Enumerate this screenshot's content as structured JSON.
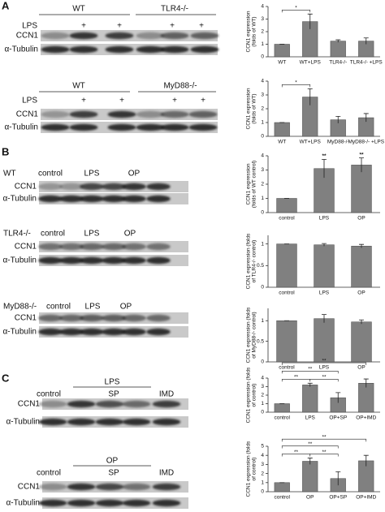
{
  "panels": [
    "A",
    "B",
    "C"
  ],
  "blots": [
    {
      "headers": [
        "WT",
        "TLR4-/-"
      ],
      "treatment": "LPS",
      "lane_marks": [
        "+",
        "+",
        "+",
        "+"
      ],
      "rows": [
        "CCN1",
        "α-Tubulin"
      ]
    },
    {
      "headers": [
        "WT",
        "MyD88-/-"
      ],
      "treatment": "LPS",
      "lane_marks": [
        "+",
        "+",
        "+",
        "+"
      ],
      "rows": [
        "CCN1",
        "α-Tubulin"
      ]
    },
    {
      "headers": [
        "WT"
      ],
      "lanes": [
        "control",
        "LPS",
        "OP"
      ],
      "rows": [
        "CCN1",
        "α-Tubulin"
      ]
    },
    {
      "headers": [
        "TLR4-/-"
      ],
      "lanes": [
        "control",
        "LPS",
        "OP"
      ],
      "rows": [
        "CCN1",
        "α-Tubulin"
      ]
    },
    {
      "headers": [
        "MyD88-/-"
      ],
      "lanes": [
        "control",
        "LPS",
        "OP"
      ],
      "rows": [
        "CCN1",
        "α-Tubulin"
      ]
    },
    {
      "headers": [
        "LPS"
      ],
      "lanes": [
        "control",
        "SP",
        "IMD"
      ],
      "rows": [
        "CCN1",
        "α-Tubulin"
      ]
    },
    {
      "headers": [
        "OP"
      ],
      "lanes": [
        "control",
        "SP",
        "IMD"
      ],
      "rows": [
        "CCN1",
        "α-Tubulin"
      ]
    }
  ],
  "chart_data": [
    {
      "type": "bar",
      "ylabel": [
        "CCN1 expression",
        "(folds of WT)"
      ],
      "categories": [
        "WT",
        "WT+LPS",
        "TLR4-/-",
        "TLR4-/- +LPS"
      ],
      "values": [
        1,
        2.8,
        1.25,
        1.25
      ],
      "errors": [
        0,
        0.6,
        0.1,
        0.25
      ],
      "color": "#808080",
      "ylim": [
        0,
        4
      ],
      "yticks": [
        0,
        1,
        2,
        3,
        4
      ],
      "significance": [
        {
          "between": [
            "WT",
            "WT+LPS"
          ],
          "label": "*"
        }
      ]
    },
    {
      "type": "bar",
      "ylabel": [
        "CCN1 expression",
        "(folds of WT)"
      ],
      "categories": [
        "WT",
        "WT+LPS",
        "MyD88-/-",
        "MyD88-/- +LPS"
      ],
      "values": [
        1,
        2.85,
        1.2,
        1.35
      ],
      "errors": [
        0,
        0.6,
        0.25,
        0.3
      ],
      "color": "#808080",
      "ylim": [
        0,
        4
      ],
      "yticks": [
        0,
        1,
        2,
        3,
        4
      ],
      "significance": [
        {
          "between": [
            "WT",
            "WT+LPS"
          ],
          "label": "*"
        }
      ]
    },
    {
      "type": "bar",
      "ylabel": [
        "CCN1 expression",
        "(folds of WT control)"
      ],
      "categories": [
        "control",
        "LPS",
        "OP"
      ],
      "values": [
        1,
        3.1,
        3.35
      ],
      "errors": [
        0,
        0.65,
        0.5
      ],
      "color": "#808080",
      "ylim": [
        0,
        4
      ],
      "yticks": [
        0,
        1,
        2,
        3,
        4
      ],
      "bar_annotations": [
        null,
        "**",
        "**"
      ]
    },
    {
      "type": "bar",
      "ylabel": [
        "CCN1 expression (folds",
        "of TLR4-/- control)"
      ],
      "categories": [
        "control",
        "LPS",
        "OP"
      ],
      "values": [
        1,
        0.98,
        0.95
      ],
      "errors": [
        0,
        0.03,
        0.04
      ],
      "color": "#808080",
      "ylim": [
        0,
        1.2
      ],
      "yticks": [
        0,
        0.5,
        1
      ]
    },
    {
      "type": "bar",
      "ylabel": [
        "CCN1 expression (folds",
        "of MyD88-/- control)"
      ],
      "categories": [
        "control",
        "LPS",
        "OP"
      ],
      "values": [
        1,
        1.05,
        0.97
      ],
      "errors": [
        0,
        0.1,
        0.05
      ],
      "color": "#808080",
      "ylim": [
        0,
        1.3
      ],
      "yticks": [
        0,
        0.5,
        1
      ]
    },
    {
      "type": "bar",
      "ylabel": [
        "CCN1 expression (folds",
        "of control)"
      ],
      "categories": [
        "control",
        "LPS",
        "OP+SP",
        "OP+IMD"
      ],
      "values": [
        1,
        3.2,
        1.7,
        3.4
      ],
      "errors": [
        0,
        0.2,
        0.6,
        0.5
      ],
      "color": "#808080",
      "ylim": [
        0,
        4
      ],
      "yticks": [
        0,
        1,
        2,
        3,
        4
      ],
      "significance": [
        {
          "between": [
            "control",
            "LPS"
          ],
          "label": "**"
        },
        {
          "between": [
            "LPS",
            "OP+SP"
          ],
          "label": "**"
        },
        {
          "between": [
            "control",
            "OP+SP"
          ],
          "label": "**"
        },
        {
          "between": [
            "control",
            "OP+IMD"
          ],
          "label": "**"
        }
      ]
    },
    {
      "type": "bar",
      "ylabel": [
        "CCN1 expression (folds",
        "of control)"
      ],
      "categories": [
        "control",
        "OP",
        "OP+SP",
        "OP+IMD"
      ],
      "values": [
        1,
        3.35,
        1.45,
        3.4
      ],
      "errors": [
        0,
        0.35,
        0.75,
        0.6
      ],
      "color": "#808080",
      "ylim": [
        0,
        5
      ],
      "yticks": [
        0,
        1,
        2,
        3,
        4,
        5
      ],
      "significance": [
        {
          "between": [
            "control",
            "OP"
          ],
          "label": "**"
        },
        {
          "between": [
            "OP",
            "OP+SP"
          ],
          "label": "**"
        },
        {
          "between": [
            "control",
            "OP+SP"
          ],
          "label": "**"
        },
        {
          "between": [
            "control",
            "OP+IMD"
          ],
          "label": "**"
        }
      ]
    }
  ]
}
